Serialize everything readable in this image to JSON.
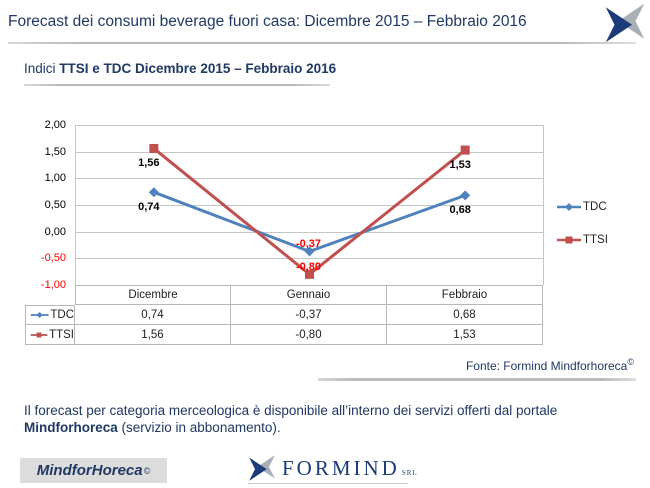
{
  "header": {
    "title": "Forecast dei consumi beverage fuori casa: Dicembre 2015 – Febbraio 2016"
  },
  "subtitle": {
    "prefix": "Indici",
    "bold_text": "TTSI e TDC Dicembre 2015 – Febbraio 2016"
  },
  "chart_data": {
    "type": "line",
    "categories": [
      "Dicembre",
      "Gennaio",
      "Febbraio"
    ],
    "series": [
      {
        "name": "TDC",
        "marker": "diamond",
        "color": "#4F81BD",
        "values": [
          0.74,
          -0.37,
          0.68
        ],
        "labels": [
          "0,74",
          "-0,37",
          "0,68"
        ]
      },
      {
        "name": "TTSI",
        "marker": "square",
        "color": "#C0504D",
        "values": [
          1.56,
          -0.8,
          1.53
        ],
        "labels": [
          "1,56",
          "-0,80",
          "1,53"
        ]
      }
    ],
    "y_axis": {
      "min": -1.0,
      "max": 2.0,
      "step": 0.5,
      "tick_labels": [
        "2,00",
        "1,50",
        "1,00",
        "0,50",
        "0,00",
        "-0,50",
        "-1,00"
      ],
      "negative_tick_color": "#FF0000"
    },
    "grid": true,
    "legend_position": "right",
    "show_data_table": true
  },
  "source_note": {
    "text": "Fonte: Formind Mindforhoreca",
    "sup": "©"
  },
  "paragraph": {
    "line1": "Il forecast per categoria merceologica è disponibile all’interno dei servizi offerti dal portale",
    "bold": "Mindforhoreca",
    "rest": " (servizio in abbonamento)."
  },
  "footer": {
    "brand": {
      "text": "MindforHoreca",
      "sup": "©"
    },
    "logo": {
      "word": "FORMIND",
      "suffix": "SRL"
    }
  },
  "colors": {
    "navy": "#1F3864",
    "tdc_blue": "#4F81BD",
    "ttsi_red": "#C0504D",
    "negative_red": "#FF0000",
    "gridline": "#C6C6C6",
    "table_border": "#B7B7B7",
    "logo_gray": "#A9AFB6"
  }
}
